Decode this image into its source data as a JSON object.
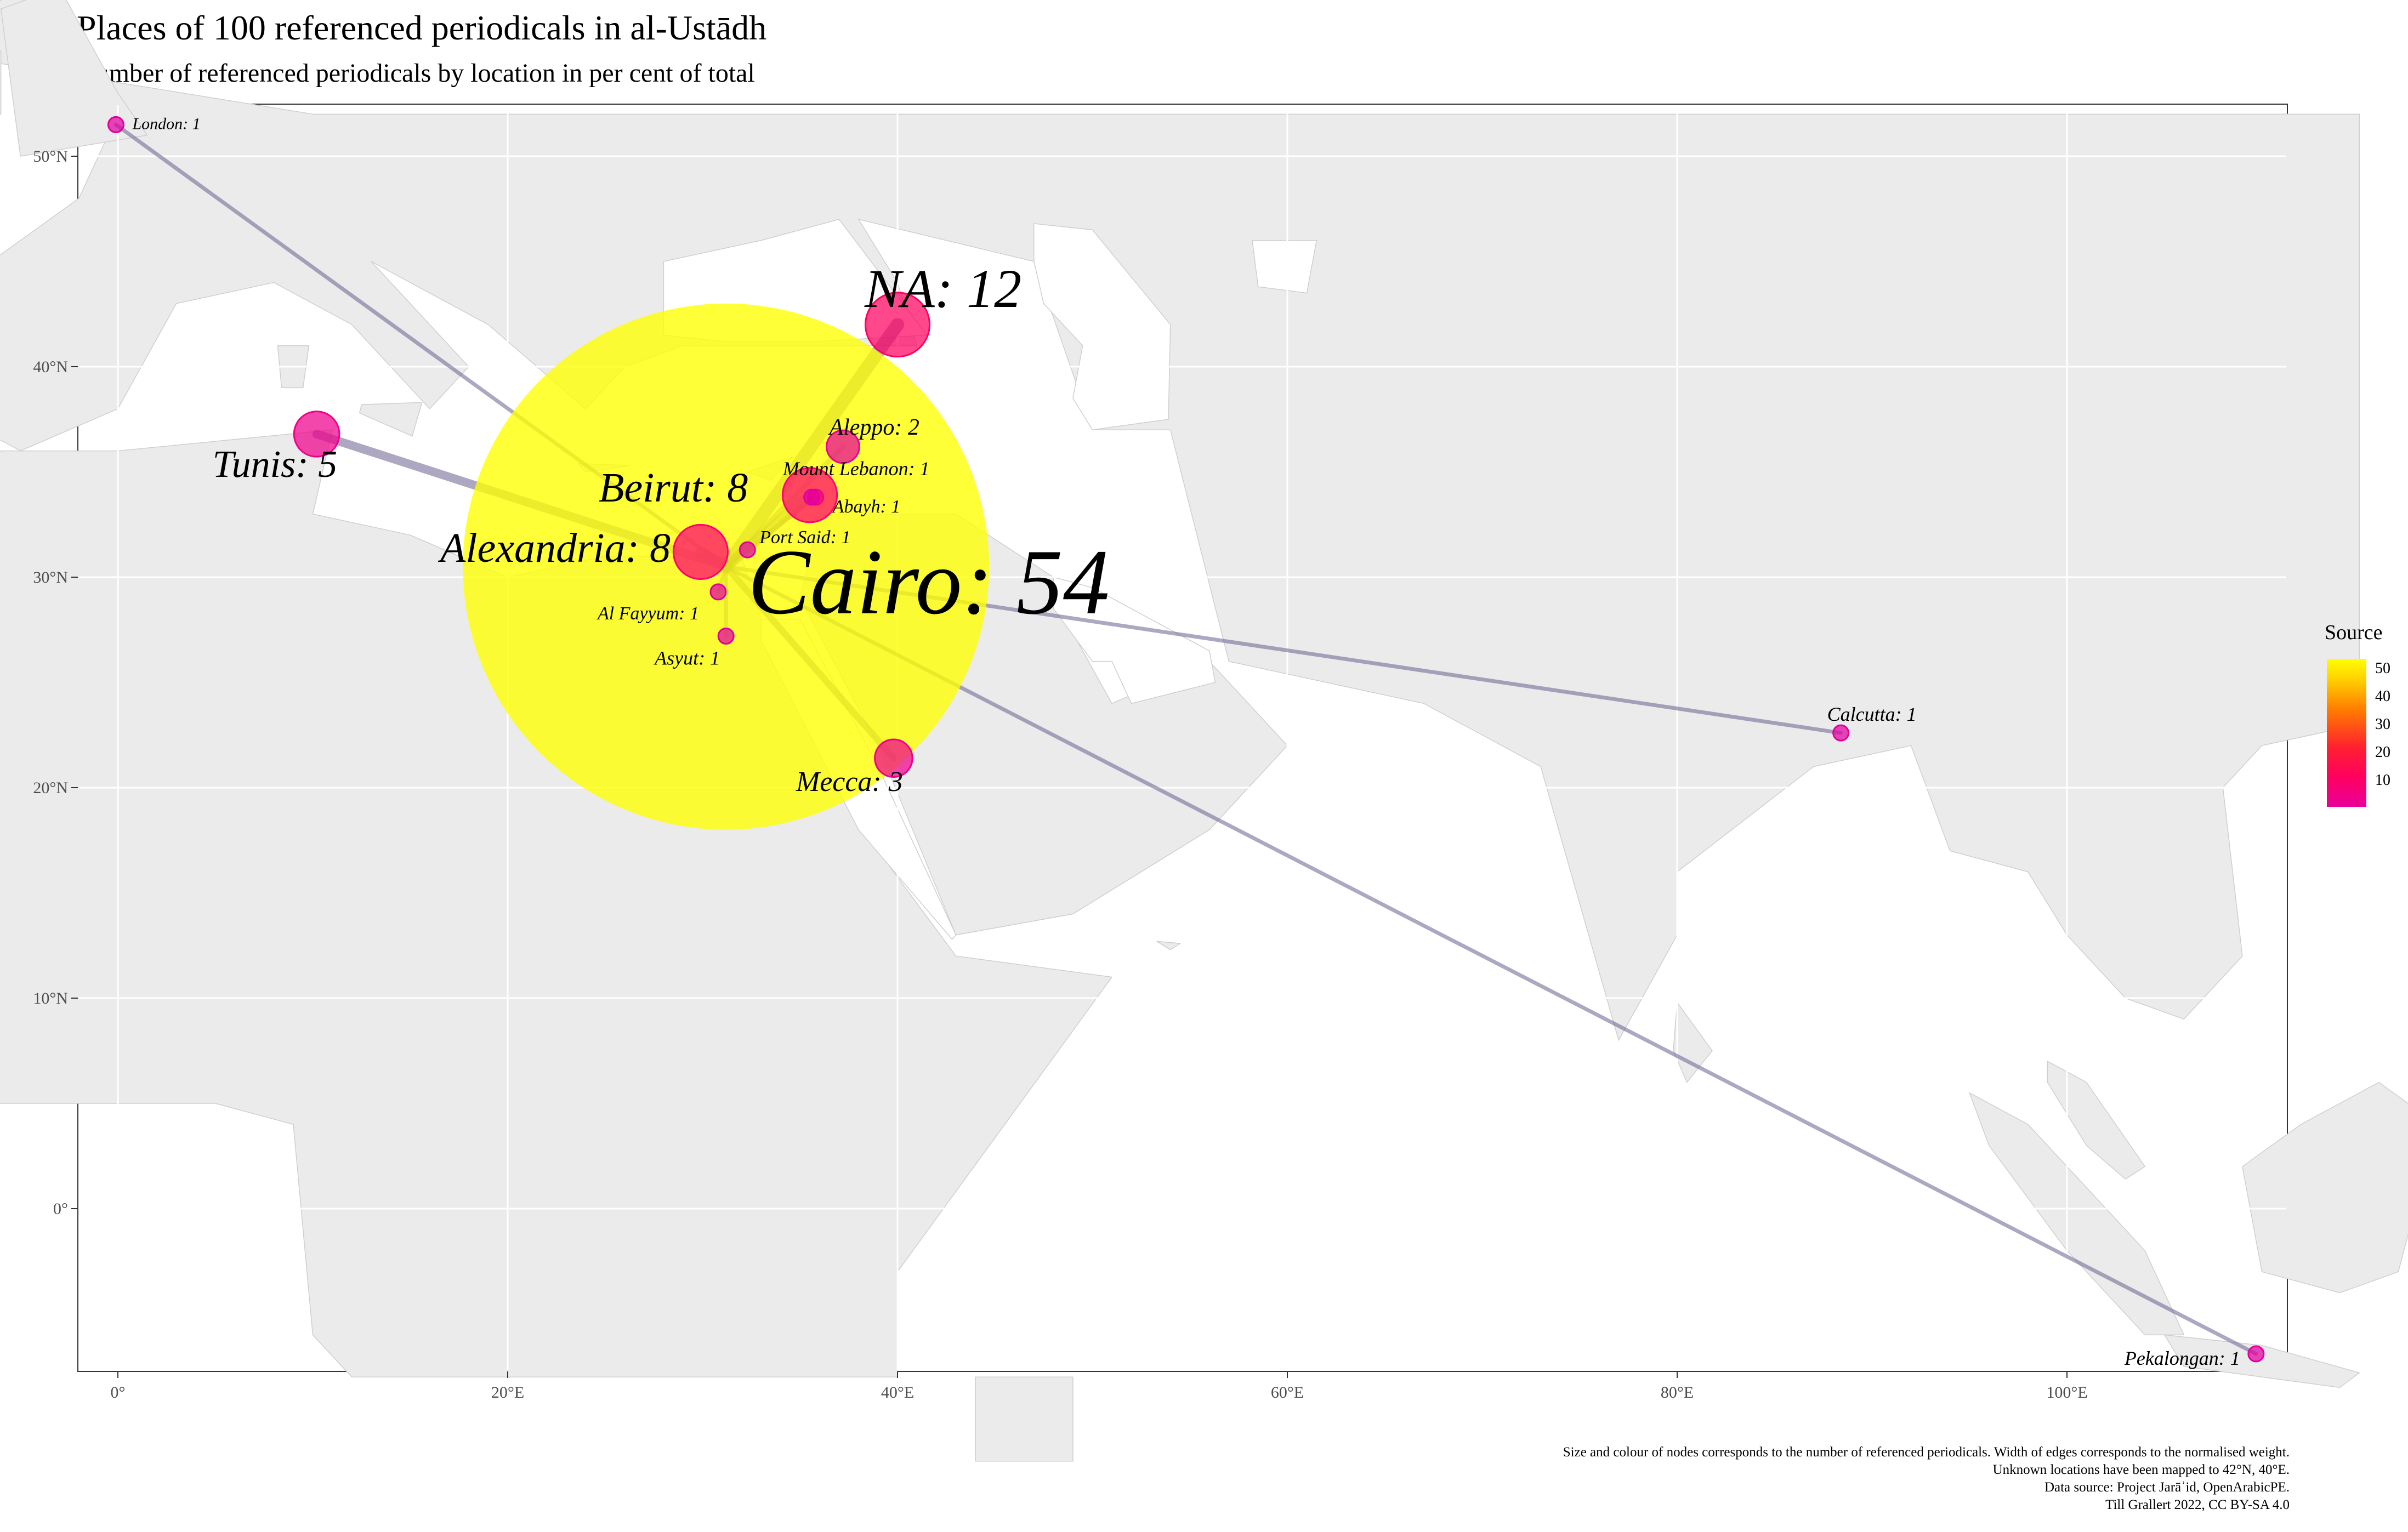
{
  "title": "Places of 100 referenced periodicals in al-Ustādh",
  "subtitle": "Number of referenced periodicals by location in per cent of total",
  "caption": [
    "Size and colour of nodes corresponds to the number of referenced periodicals. Width of edges corresponds to the normalised weight.",
    "Unknown locations have been mapped to 42°N, 40°E.",
    "Data source: Project Jarāʾid, OpenArabicPE.",
    "Till Grallert 2022, CC BY-SA 4.0"
  ],
  "map": {
    "x_ticks": [
      "0°",
      "20°E",
      "40°E",
      "60°E",
      "80°E",
      "100°E"
    ],
    "y_ticks": [
      "0°",
      "10°N",
      "20°N",
      "30°N",
      "40°N",
      "50°N"
    ],
    "land_color": "#ebebeb",
    "border_color": "#cfcfcf",
    "grid_color": "#ffffff",
    "edge_color": "#6b5f8f",
    "source": {
      "name": "Cairo",
      "lon": 31.2,
      "lat": 30.5,
      "count": 54,
      "label": "Cairo: 54",
      "color": "#ffff00"
    },
    "nodes": [
      {
        "name": "London",
        "lon": -0.1,
        "lat": 51.5,
        "count": 1,
        "label": "London: 1",
        "color": "#e0009f"
      },
      {
        "name": "NA",
        "lon": 40,
        "lat": 42,
        "count": 12,
        "label": "NA: 12",
        "color": "#ff0060"
      },
      {
        "name": "Tunis",
        "lon": 10.2,
        "lat": 36.8,
        "count": 5,
        "label": "Tunis: 5",
        "color": "#f0008a"
      },
      {
        "name": "Aleppo",
        "lon": 37.2,
        "lat": 36.2,
        "count": 2,
        "label": "Aleppo: 2",
        "color": "#e8009a"
      },
      {
        "name": "Mount Lebanon",
        "lon": 35.8,
        "lat": 33.8,
        "count": 1,
        "label": "Mount Lebanon: 1",
        "color": "#e0009f"
      },
      {
        "name": "Beirut",
        "lon": 35.5,
        "lat": 33.9,
        "count": 8,
        "label": "Beirut: 8",
        "color": "#ff0070"
      },
      {
        "name": "Abayh",
        "lon": 35.6,
        "lat": 33.8,
        "count": 1,
        "label": "Abayh: 1",
        "color": "#e0009f"
      },
      {
        "name": "Alexandria",
        "lon": 29.9,
        "lat": 31.2,
        "count": 8,
        "label": "Alexandria: 8",
        "color": "#ff0070"
      },
      {
        "name": "Port Said",
        "lon": 32.3,
        "lat": 31.3,
        "count": 1,
        "label": "Port Said: 1",
        "color": "#e0009f"
      },
      {
        "name": "Al Fayyum",
        "lon": 30.8,
        "lat": 29.3,
        "count": 1,
        "label": "Al Fayyum: 1",
        "color": "#e0009f"
      },
      {
        "name": "Asyut",
        "lon": 31.2,
        "lat": 27.2,
        "count": 1,
        "label": "Asyut: 1",
        "color": "#e0009f"
      },
      {
        "name": "Mecca",
        "lon": 39.8,
        "lat": 21.4,
        "count": 3,
        "label": "Mecca: 3",
        "color": "#f0008a"
      },
      {
        "name": "Calcutta",
        "lon": 88.4,
        "lat": 22.6,
        "count": 1,
        "label": "Calcutta: 1",
        "color": "#e0009f"
      },
      {
        "name": "Pekalongan",
        "lon": 109.7,
        "lat": -6.9,
        "count": 1,
        "label": "Pekalongan: 1",
        "color": "#e0009f"
      }
    ]
  },
  "legend": {
    "title": "Source",
    "ticks": [
      "50",
      "40",
      "30",
      "20",
      "10"
    ],
    "tick_values": [
      50,
      40,
      30,
      20,
      10
    ],
    "range": [
      1,
      54
    ]
  }
}
